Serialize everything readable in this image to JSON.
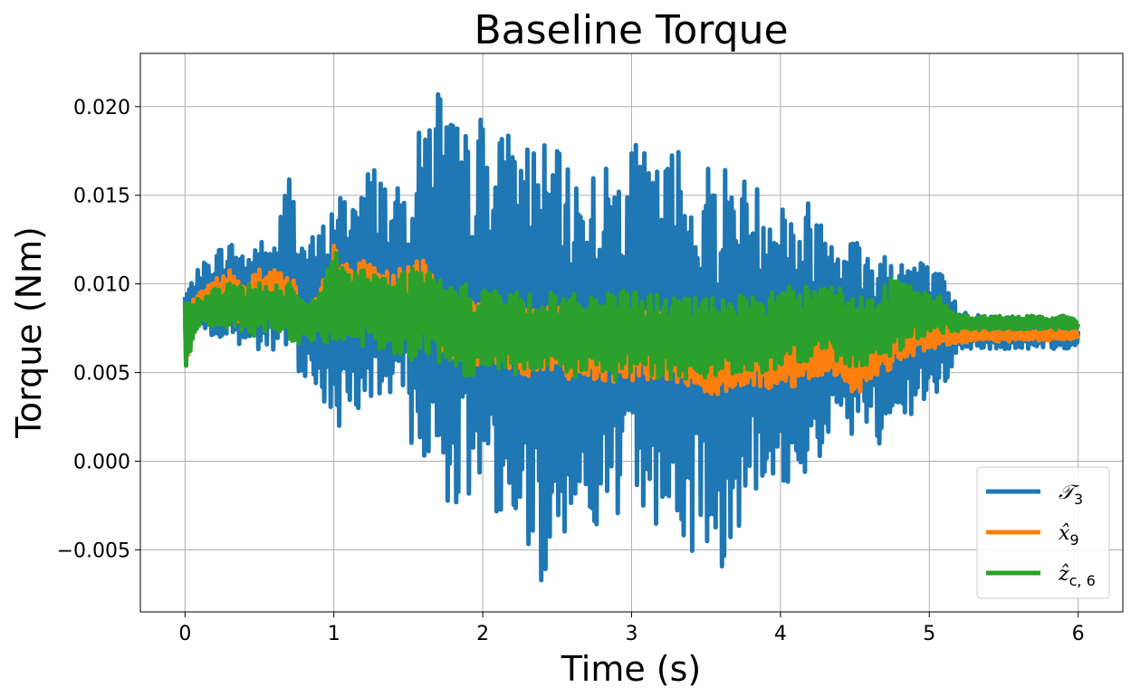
{
  "chart_data": {
    "type": "line",
    "title": "Baseline Torque",
    "xlabel": "Time (s)",
    "ylabel": "Torque (Nm)",
    "xlim": [
      -0.3,
      6.3
    ],
    "ylim": [
      -0.0085,
      0.023
    ],
    "x_ticks": [
      0,
      1,
      2,
      3,
      4,
      5,
      6
    ],
    "x_tick_labels": [
      "0",
      "1",
      "2",
      "3",
      "4",
      "5",
      "6"
    ],
    "y_ticks": [
      -0.005,
      0.0,
      0.005,
      0.01,
      0.015,
      0.02
    ],
    "y_tick_labels": [
      "−0.005",
      "0.000",
      "0.005",
      "0.010",
      "0.015",
      "0.020"
    ],
    "grid": true,
    "legend_position": "bottom-right",
    "series": [
      {
        "name": "𝒯3",
        "legend_main": "𝒯",
        "legend_sub": "3",
        "color": "#1f77b4",
        "x": [
          0.0,
          0.1,
          0.2,
          0.3,
          0.4,
          0.5,
          0.6,
          0.7,
          0.8,
          0.9,
          1.0,
          1.1,
          1.2,
          1.3,
          1.4,
          1.5,
          1.6,
          1.7,
          1.8,
          1.9,
          2.0,
          2.1,
          2.2,
          2.3,
          2.4,
          2.5,
          2.6,
          2.7,
          2.8,
          2.9,
          3.0,
          3.1,
          3.2,
          3.3,
          3.4,
          3.5,
          3.6,
          3.7,
          3.8,
          3.9,
          4.0,
          4.1,
          4.2,
          4.3,
          4.4,
          4.5,
          4.6,
          4.7,
          4.8,
          4.9,
          5.0,
          5.1,
          5.2,
          5.3,
          5.4,
          5.5,
          5.6,
          5.7,
          5.8,
          5.9,
          6.0
        ],
        "y_min": [
          0.0078,
          0.0075,
          0.0068,
          0.0065,
          0.0062,
          0.006,
          0.0058,
          0.0055,
          0.0048,
          0.004,
          0.001,
          0.0028,
          0.003,
          0.0028,
          0.002,
          0.0015,
          -0.001,
          -0.002,
          -0.0025,
          -0.003,
          -0.002,
          -0.003,
          -0.004,
          -0.005,
          -0.007,
          -0.004,
          -0.004,
          -0.0035,
          -0.004,
          -0.004,
          -0.003,
          -0.003,
          -0.004,
          -0.0045,
          -0.0055,
          -0.0045,
          -0.0065,
          -0.004,
          -0.0025,
          -0.0025,
          -0.002,
          -0.001,
          -0.001,
          0.0005,
          0.001,
          0.0015,
          0.0015,
          -0.0005,
          0.002,
          0.0025,
          0.0035,
          0.004,
          0.0062,
          0.0063,
          0.0063,
          0.0063,
          0.0063,
          0.0063,
          0.0063,
          0.0063,
          0.0065
        ],
        "y_max": [
          0.0095,
          0.011,
          0.012,
          0.0125,
          0.012,
          0.0125,
          0.0125,
          0.0165,
          0.0125,
          0.013,
          0.015,
          0.0155,
          0.0165,
          0.017,
          0.015,
          0.0165,
          0.0195,
          0.0218,
          0.0195,
          0.0185,
          0.02,
          0.0185,
          0.019,
          0.0185,
          0.018,
          0.0175,
          0.0165,
          0.017,
          0.0165,
          0.0175,
          0.018,
          0.0175,
          0.0165,
          0.0185,
          0.016,
          0.017,
          0.0175,
          0.0165,
          0.016,
          0.0155,
          0.016,
          0.014,
          0.015,
          0.014,
          0.014,
          0.013,
          0.012,
          0.0125,
          0.012,
          0.012,
          0.011,
          0.0105,
          0.0085,
          0.0085,
          0.0082,
          0.0082,
          0.0082,
          0.0082,
          0.0082,
          0.0082,
          0.0082
        ]
      },
      {
        "name": "x̂9",
        "legend_main": "x̂",
        "legend_sub": "9",
        "color": "#ff7f0e",
        "x": [
          0.0,
          0.1,
          0.2,
          0.3,
          0.4,
          0.5,
          0.6,
          0.7,
          0.8,
          0.9,
          1.0,
          1.1,
          1.2,
          1.3,
          1.4,
          1.5,
          1.6,
          1.7,
          1.8,
          1.9,
          2.0,
          2.1,
          2.2,
          2.3,
          2.4,
          2.5,
          2.6,
          2.7,
          2.8,
          2.9,
          3.0,
          3.1,
          3.2,
          3.3,
          3.4,
          3.5,
          3.6,
          3.7,
          3.8,
          3.9,
          4.0,
          4.1,
          4.2,
          4.3,
          4.4,
          4.5,
          4.6,
          4.7,
          4.8,
          4.9,
          5.0,
          5.1,
          5.2,
          5.3,
          5.4,
          5.5,
          5.6,
          5.7,
          5.8,
          5.9,
          6.0
        ],
        "y_min": [
          0.005,
          0.0082,
          0.008,
          0.008,
          0.0078,
          0.0082,
          0.008,
          0.0078,
          0.0075,
          0.0075,
          0.007,
          0.0072,
          0.007,
          0.007,
          0.0068,
          0.006,
          0.0065,
          0.0062,
          0.0055,
          0.0052,
          0.0055,
          0.0052,
          0.005,
          0.0048,
          0.005,
          0.0048,
          0.0046,
          0.0045,
          0.0046,
          0.0044,
          0.0045,
          0.0046,
          0.0042,
          0.0043,
          0.0042,
          0.0038,
          0.0035,
          0.004,
          0.0042,
          0.004,
          0.0042,
          0.0042,
          0.0043,
          0.0045,
          0.005,
          0.0035,
          0.0045,
          0.005,
          0.0055,
          0.006,
          0.0063,
          0.0065,
          0.0066,
          0.0068,
          0.0068,
          0.0067,
          0.0068,
          0.0068,
          0.0068,
          0.0068,
          0.0069
        ],
        "y_max": [
          0.0092,
          0.0095,
          0.0105,
          0.0108,
          0.0102,
          0.011,
          0.0108,
          0.011,
          0.0085,
          0.0095,
          0.0122,
          0.0112,
          0.0113,
          0.0112,
          0.0105,
          0.0115,
          0.0113,
          0.0105,
          0.009,
          0.0095,
          0.0095,
          0.0092,
          0.009,
          0.0088,
          0.0085,
          0.009,
          0.0085,
          0.0088,
          0.0084,
          0.0085,
          0.009,
          0.0085,
          0.0084,
          0.0082,
          0.008,
          0.0083,
          0.0082,
          0.008,
          0.0078,
          0.0078,
          0.008,
          0.0078,
          0.0082,
          0.0085,
          0.008,
          0.0075,
          0.0072,
          0.0078,
          0.008,
          0.008,
          0.0082,
          0.008,
          0.0075,
          0.0074,
          0.0074,
          0.0074,
          0.0074,
          0.0074,
          0.0074,
          0.0074,
          0.0073
        ]
      },
      {
        "name": "ẑc, 6",
        "legend_main": "ẑ",
        "legend_sub": "c, 6",
        "color": "#2ca02c",
        "x": [
          0.0,
          0.1,
          0.2,
          0.3,
          0.4,
          0.5,
          0.6,
          0.7,
          0.8,
          0.9,
          1.0,
          1.1,
          1.2,
          1.3,
          1.4,
          1.5,
          1.6,
          1.7,
          1.8,
          1.9,
          2.0,
          2.1,
          2.2,
          2.3,
          2.4,
          2.5,
          2.6,
          2.7,
          2.8,
          2.9,
          3.0,
          3.1,
          3.2,
          3.3,
          3.4,
          3.5,
          3.6,
          3.7,
          3.8,
          3.9,
          4.0,
          4.1,
          4.2,
          4.3,
          4.4,
          4.5,
          4.6,
          4.7,
          4.8,
          4.9,
          5.0,
          5.1,
          5.2,
          5.3,
          5.4,
          5.5,
          5.6,
          5.7,
          5.8,
          5.9,
          6.0
        ],
        "y_min": [
          0.005,
          0.0078,
          0.0075,
          0.0074,
          0.0072,
          0.007,
          0.0072,
          0.0068,
          0.0065,
          0.0068,
          0.0065,
          0.0065,
          0.0062,
          0.006,
          0.006,
          0.0055,
          0.0058,
          0.0055,
          0.005,
          0.0045,
          0.0048,
          0.005,
          0.0048,
          0.0046,
          0.005,
          0.0048,
          0.0046,
          0.0048,
          0.0046,
          0.0045,
          0.0048,
          0.0048,
          0.0046,
          0.0047,
          0.0046,
          0.0045,
          0.0048,
          0.005,
          0.005,
          0.005,
          0.0052,
          0.0055,
          0.0055,
          0.0058,
          0.0055,
          0.005,
          0.0052,
          0.0058,
          0.0062,
          0.0068,
          0.0072,
          0.0072,
          0.0073,
          0.0074,
          0.0074,
          0.0074,
          0.0074,
          0.0074,
          0.0074,
          0.0074,
          0.0075
        ],
        "y_max": [
          0.009,
          0.0092,
          0.0098,
          0.01,
          0.01,
          0.0102,
          0.01,
          0.0102,
          0.009,
          0.0095,
          0.012,
          0.0108,
          0.011,
          0.0108,
          0.0102,
          0.0112,
          0.011,
          0.0105,
          0.0098,
          0.01,
          0.01,
          0.0098,
          0.0095,
          0.0096,
          0.0094,
          0.0096,
          0.0094,
          0.0096,
          0.0094,
          0.0095,
          0.0098,
          0.0095,
          0.0094,
          0.0094,
          0.0092,
          0.0093,
          0.0094,
          0.0094,
          0.0092,
          0.0095,
          0.0098,
          0.01,
          0.01,
          0.0108,
          0.0098,
          0.0092,
          0.0095,
          0.01,
          0.0106,
          0.0098,
          0.0095,
          0.0092,
          0.0083,
          0.0082,
          0.0082,
          0.0082,
          0.0082,
          0.0082,
          0.0082,
          0.0082,
          0.008
        ]
      }
    ]
  }
}
